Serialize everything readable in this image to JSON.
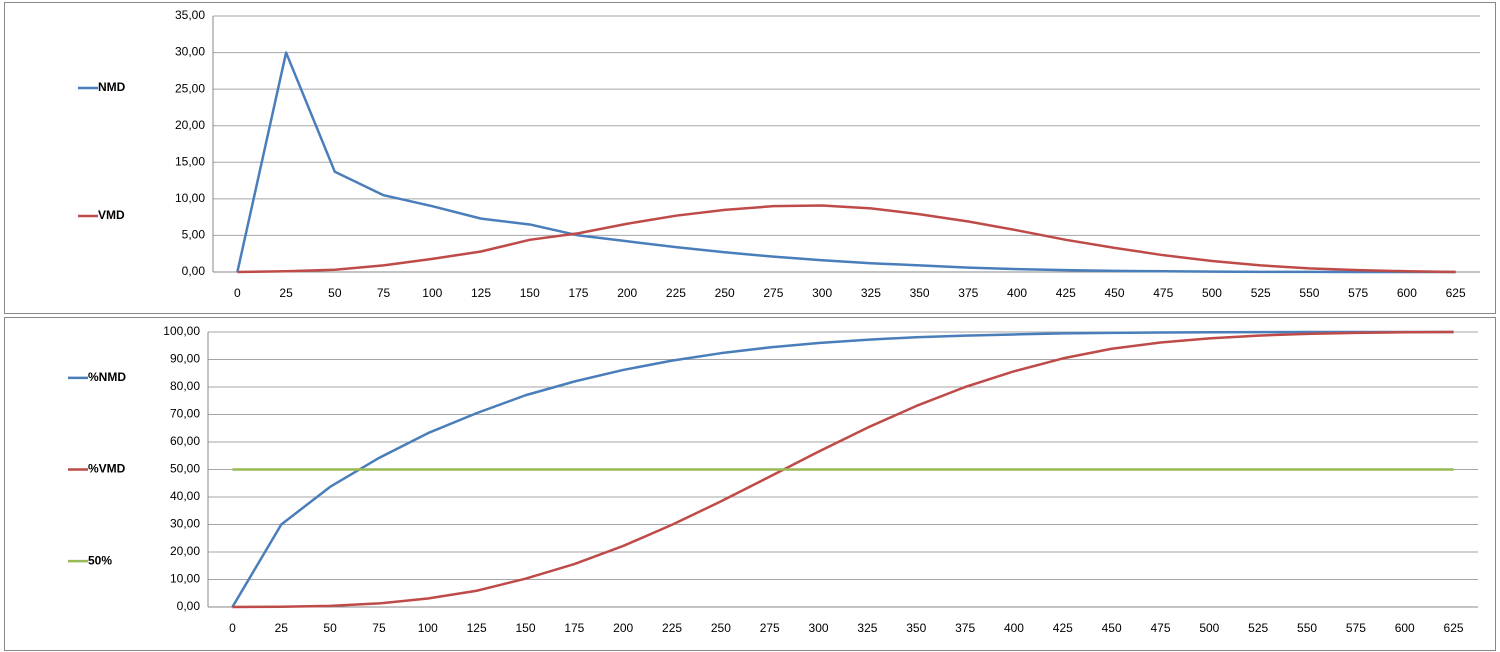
{
  "chart_data": [
    {
      "type": "line",
      "categories": [
        0,
        25,
        50,
        75,
        100,
        125,
        150,
        175,
        200,
        225,
        250,
        275,
        300,
        325,
        350,
        375,
        400,
        425,
        450,
        475,
        500,
        525,
        550,
        575,
        600,
        625
      ],
      "series": [
        {
          "name": "NMD",
          "color": "#4a7ebb",
          "values": [
            0,
            30,
            13.7,
            10.5,
            9,
            7.3,
            6.5,
            5,
            4.2,
            3.4,
            2.7,
            2.1,
            1.6,
            1.2,
            0.9,
            0.6,
            0.4,
            0.25,
            0.15,
            0.1,
            0.05,
            0.02,
            0.01,
            0,
            0,
            0
          ]
        },
        {
          "name": "VMD",
          "color": "#be4b48",
          "values": [
            0,
            0.1,
            0.3,
            0.9,
            1.8,
            2.8,
            4.4,
            5.3,
            6.6,
            7.7,
            8.5,
            9,
            9.1,
            8.7,
            7.9,
            6.9,
            5.7,
            4.4,
            3.3,
            2.3,
            1.5,
            0.9,
            0.5,
            0.25,
            0.1,
            0
          ]
        }
      ],
      "ylim": [
        0,
        35
      ],
      "yticks": [
        {
          "value": 0,
          "label": "0,00"
        },
        {
          "value": 5,
          "label": "5,00"
        },
        {
          "value": 10,
          "label": "10,00"
        },
        {
          "value": 15,
          "label": "15,00"
        },
        {
          "value": 20,
          "label": "20,00"
        },
        {
          "value": 25,
          "label": "25,00"
        },
        {
          "value": 30,
          "label": "30,00"
        },
        {
          "value": 35,
          "label": "35,00"
        }
      ],
      "grid": true,
      "legend": "left"
    },
    {
      "type": "line",
      "categories": [
        0,
        25,
        50,
        75,
        100,
        125,
        150,
        175,
        200,
        225,
        250,
        275,
        300,
        325,
        350,
        375,
        400,
        425,
        450,
        475,
        500,
        525,
        550,
        575,
        600,
        625
      ],
      "series": [
        {
          "name": "%NMD",
          "color": "#4a7ebb",
          "values": [
            0,
            30,
            43.7,
            54.2,
            63.2,
            70.5,
            77,
            82,
            86.2,
            89.6,
            92.3,
            94.4,
            96,
            97.2,
            98.1,
            98.7,
            99.1,
            99.5,
            99.7,
            99.8,
            99.9,
            99.95,
            100,
            100,
            100,
            100
          ]
        },
        {
          "name": "%VMD",
          "color": "#be4b48",
          "values": [
            0,
            0.1,
            0.4,
            1.3,
            3.1,
            5.9,
            10.3,
            15.6,
            22.2,
            29.9,
            38.4,
            47.4,
            56.5,
            65.2,
            73.1,
            80,
            85.7,
            90.4,
            93.9,
            96.2,
            97.7,
            98.7,
            99.3,
            99.7,
            99.9,
            100
          ]
        },
        {
          "name": "50%",
          "color": "#98b954",
          "values": [
            50,
            50,
            50,
            50,
            50,
            50,
            50,
            50,
            50,
            50,
            50,
            50,
            50,
            50,
            50,
            50,
            50,
            50,
            50,
            50,
            50,
            50,
            50,
            50,
            50,
            50
          ]
        }
      ],
      "ylim": [
        0,
        100
      ],
      "yticks": [
        {
          "value": 0,
          "label": "0,00"
        },
        {
          "value": 10,
          "label": "10,00"
        },
        {
          "value": 20,
          "label": "20,00"
        },
        {
          "value": 30,
          "label": "30,00"
        },
        {
          "value": 40,
          "label": "40,00"
        },
        {
          "value": 50,
          "label": "50,00"
        },
        {
          "value": 60,
          "label": "60,00"
        },
        {
          "value": 70,
          "label": "70,00"
        },
        {
          "value": 80,
          "label": "80,00"
        },
        {
          "value": 90,
          "label": "90,00"
        },
        {
          "value": 100,
          "label": "100,00"
        }
      ],
      "grid": true,
      "legend": "left"
    }
  ]
}
